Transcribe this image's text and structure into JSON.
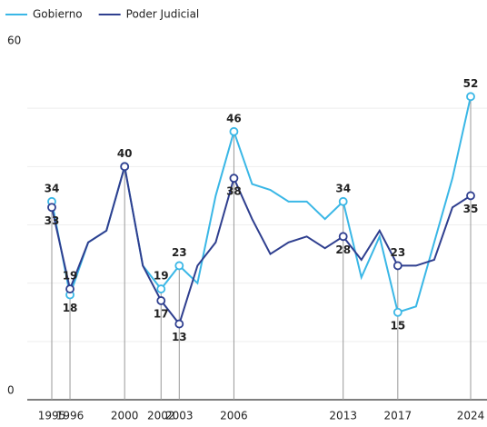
{
  "chart_data": {
    "type": "line",
    "categories": [
      "1995",
      "1996",
      null,
      null,
      "2000",
      null,
      "2002",
      "2003",
      null,
      null,
      "2006",
      null,
      null,
      null,
      null,
      null,
      "2013",
      null,
      null,
      "2017",
      null,
      null,
      null,
      "2024"
    ],
    "series": [
      {
        "name": "Gobierno",
        "color": "#3ab7e6",
        "values": [
          34,
          18,
          27,
          29,
          40,
          23,
          19,
          23,
          20,
          35,
          46,
          37,
          36,
          34,
          34,
          31,
          34,
          21,
          28,
          15,
          16,
          27,
          38,
          52
        ]
      },
      {
        "name": "Poder Judicial",
        "color": "#2f3f8f",
        "values": [
          33,
          19,
          27,
          29,
          40,
          23,
          17,
          13,
          23,
          27,
          38,
          31,
          25,
          27,
          28,
          26,
          28,
          24,
          29,
          23,
          23,
          24,
          33,
          35
        ]
      }
    ],
    "ylim": [
      0,
      60
    ],
    "yticks": [
      0,
      60
    ],
    "gridlines": [
      10,
      20,
      30,
      40,
      50
    ],
    "legend": "top-left"
  }
}
